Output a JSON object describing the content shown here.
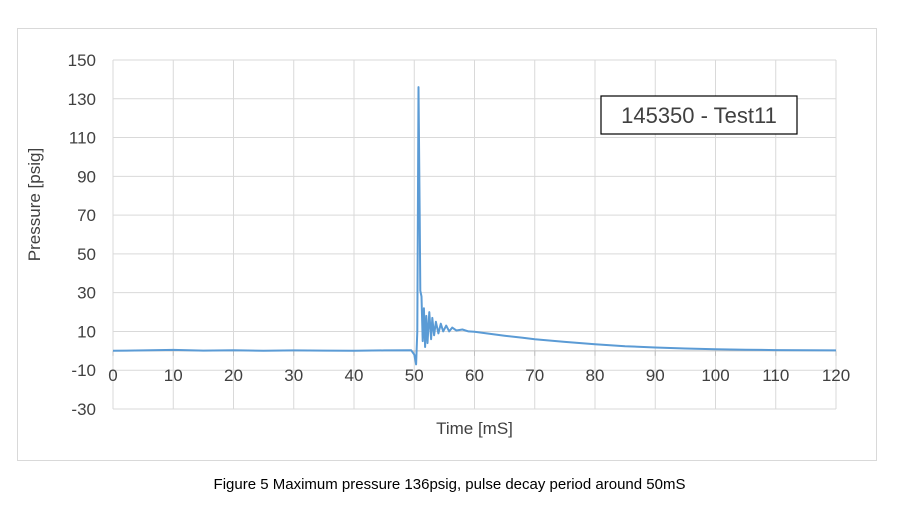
{
  "chart_data": {
    "type": "line",
    "title": "",
    "xlabel": "Time [mS]",
    "ylabel": "Pressure [psig]",
    "xlim": [
      0,
      120
    ],
    "ylim": [
      -30,
      150
    ],
    "xticks": [
      0,
      10,
      20,
      30,
      40,
      50,
      60,
      70,
      80,
      90,
      100,
      110,
      120
    ],
    "yticks": [
      -30,
      -10,
      10,
      30,
      50,
      70,
      90,
      110,
      130,
      150
    ],
    "grid": true,
    "annotation": "145350 - Test11",
    "series": [
      {
        "name": "Pressure",
        "color": "#5b9bd5",
        "points": [
          [
            0,
            0
          ],
          [
            5,
            0.2
          ],
          [
            10,
            0.5
          ],
          [
            15,
            0.1
          ],
          [
            20,
            0.3
          ],
          [
            25,
            0.0
          ],
          [
            30,
            0.2
          ],
          [
            35,
            0.1
          ],
          [
            40,
            0.0
          ],
          [
            45,
            0.2
          ],
          [
            49.5,
            0.3
          ],
          [
            50.0,
            -2
          ],
          [
            50.3,
            -7
          ],
          [
            50.5,
            10
          ],
          [
            50.7,
            136
          ],
          [
            50.9,
            70
          ],
          [
            51.0,
            31
          ],
          [
            51.2,
            28
          ],
          [
            51.4,
            5
          ],
          [
            51.6,
            22
          ],
          [
            51.8,
            2
          ],
          [
            52.0,
            18
          ],
          [
            52.2,
            4
          ],
          [
            52.5,
            20
          ],
          [
            52.8,
            6
          ],
          [
            53.0,
            17
          ],
          [
            53.3,
            8
          ],
          [
            53.6,
            15
          ],
          [
            54.0,
            9
          ],
          [
            54.4,
            14
          ],
          [
            54.8,
            10
          ],
          [
            55.3,
            13
          ],
          [
            55.8,
            10
          ],
          [
            56.3,
            12
          ],
          [
            57.0,
            10.5
          ],
          [
            58.0,
            11
          ],
          [
            59.0,
            10
          ],
          [
            60,
            9.8
          ],
          [
            62,
            9.0
          ],
          [
            65,
            7.8
          ],
          [
            68,
            6.7
          ],
          [
            70,
            6.0
          ],
          [
            75,
            4.6
          ],
          [
            80,
            3.4
          ],
          [
            85,
            2.4
          ],
          [
            90,
            1.7
          ],
          [
            95,
            1.2
          ],
          [
            100,
            0.8
          ],
          [
            105,
            0.6
          ],
          [
            110,
            0.4
          ],
          [
            115,
            0.3
          ],
          [
            120,
            0.2
          ]
        ]
      }
    ]
  },
  "caption": "Figure 5 Maximum pressure 136psig, pulse decay period around 50mS"
}
